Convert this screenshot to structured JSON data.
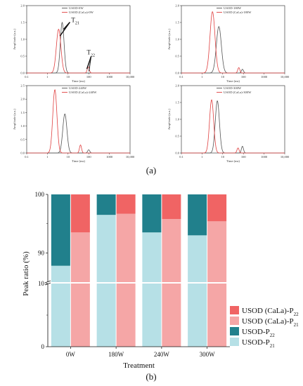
{
  "chart_data": [
    {
      "type": "line",
      "panel": "top-left",
      "xlabel": "Time (ms)",
      "ylabel": "Amplitude (a.u.)",
      "x_scale": "log",
      "xlim": [
        0.1,
        10000
      ],
      "xticks": [
        "0.1",
        "1",
        "10",
        "100",
        "1000",
        "10,000"
      ],
      "ylim": [
        0,
        2.0
      ],
      "yticks": [
        "0.0",
        "0.5",
        "1.0",
        "1.5",
        "2.0"
      ],
      "series": [
        {
          "name": "USOD-0W",
          "color": "#555555",
          "peaks": [
            {
              "x": 5.2,
              "y": 1.5,
              "w": 0.09
            }
          ]
        },
        {
          "name": "USOD (CaLa)-0W",
          "color": "#e04040",
          "peaks": [
            {
              "x": 3.5,
              "y": 1.3,
              "w": 0.11
            },
            {
              "x": 95,
              "y": 0.18,
              "w": 0.05
            }
          ]
        }
      ],
      "annotations": [
        {
          "text": "T",
          "sub": "21"
        },
        {
          "text": "T",
          "sub": "22"
        }
      ]
    },
    {
      "type": "line",
      "panel": "top-right",
      "xlabel": "Time (ms)",
      "ylabel": "Amplitude (a.u.)",
      "x_scale": "log",
      "xlim": [
        0.1,
        10000
      ],
      "xticks": [
        "0.1",
        "1",
        "10",
        "100",
        "1000",
        "10,000"
      ],
      "ylim": [
        0,
        2.0
      ],
      "yticks": [
        "0.0",
        "0.5",
        "1.0",
        "1.5",
        "2.0"
      ],
      "series": [
        {
          "name": "USOD-180W",
          "color": "#555555",
          "peaks": [
            {
              "x": 6.5,
              "y": 1.38,
              "w": 0.12
            },
            {
              "x": 90,
              "y": 0.11,
              "w": 0.05
            }
          ]
        },
        {
          "name": "USOD (CaLa)-180W",
          "color": "#e04040",
          "peaks": [
            {
              "x": 3.2,
              "y": 1.82,
              "w": 0.12
            },
            {
              "x": 60,
              "y": 0.16,
              "w": 0.05
            }
          ]
        }
      ]
    },
    {
      "type": "line",
      "panel": "bottom-left",
      "xlabel": "Time (ms)",
      "ylabel": "Amplitude (a.u.)",
      "x_scale": "log",
      "xlim": [
        0.1,
        10000
      ],
      "xticks": [
        "0.1",
        "1",
        "10",
        "100",
        "1000",
        "10,000"
      ],
      "ylim": [
        0,
        2.5
      ],
      "yticks": [
        "0.0",
        "0.5",
        "1.0",
        "1.5",
        "2.0",
        "2.5"
      ],
      "series": [
        {
          "name": "USOD-240W",
          "color": "#555555",
          "peaks": [
            {
              "x": 7.0,
              "y": 1.45,
              "w": 0.1
            },
            {
              "x": 100,
              "y": 0.12,
              "w": 0.05
            }
          ]
        },
        {
          "name": "USOD (CaLa)-240W",
          "color": "#e04040",
          "peaks": [
            {
              "x": 2.3,
              "y": 2.35,
              "w": 0.1
            },
            {
              "x": 40,
              "y": 0.3,
              "w": 0.05
            }
          ]
        }
      ]
    },
    {
      "type": "line",
      "panel": "bottom-right",
      "xlabel": "Time (ms)",
      "ylabel": "Amplitude (a.u.)",
      "x_scale": "log",
      "xlim": [
        0.1,
        10000
      ],
      "xticks": [
        "0.1",
        "1",
        "10",
        "100",
        "1000",
        "10,000"
      ],
      "ylim": [
        0,
        2.0
      ],
      "yticks": [
        "0.0",
        "0.5",
        "1.0",
        "1.5",
        "2.0"
      ],
      "series": [
        {
          "name": "USOD-300W",
          "color": "#555555",
          "peaks": [
            {
              "x": 5.5,
              "y": 1.55,
              "w": 0.1
            },
            {
              "x": 90,
              "y": 0.2,
              "w": 0.05
            }
          ]
        },
        {
          "name": "USOD (CaLa)-300W",
          "color": "#e04040",
          "peaks": [
            {
              "x": 2.9,
              "y": 1.58,
              "w": 0.1
            },
            {
              "x": 55,
              "y": 0.15,
              "w": 0.05
            }
          ]
        }
      ]
    },
    {
      "type": "bar",
      "stacked": true,
      "xlabel": "Treatment",
      "ylabel": "Peak ratio (%)",
      "categories": [
        "0W",
        "180W",
        "240W",
        "300W"
      ],
      "axis_break": {
        "lower": [
          0,
          10
        ],
        "upper": [
          85,
          100
        ]
      },
      "yticks": [
        "0",
        "10",
        "90",
        "100"
      ],
      "legend_position": "bottom-right",
      "series": [
        {
          "name": "USOD-P",
          "sub": "21",
          "color": "#b6e0e6",
          "group": "USOD",
          "values": [
            87.8,
            96.5,
            93.5,
            93.0
          ]
        },
        {
          "name": "USOD-P",
          "sub": "22",
          "color": "#21808c",
          "group": "USOD",
          "values": [
            12.2,
            3.5,
            6.5,
            7.0
          ]
        },
        {
          "name": "USOD (CaLa)-P",
          "sub": "21",
          "color": "#f5a6a6",
          "group": "CaLa",
          "values": [
            93.5,
            96.7,
            95.8,
            95.4
          ]
        },
        {
          "name": "USOD (CaLa)-P",
          "sub": "22",
          "color": "#f06464",
          "group": "CaLa",
          "values": [
            6.5,
            3.3,
            4.2,
            4.6
          ]
        }
      ]
    }
  ],
  "captions": {
    "a": "(a)",
    "b": "(b)"
  }
}
